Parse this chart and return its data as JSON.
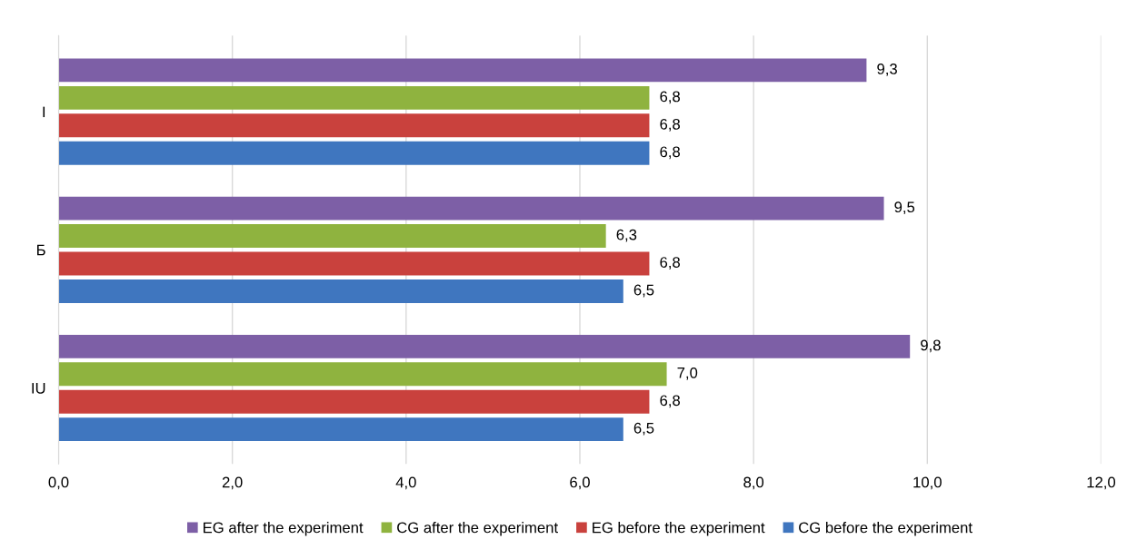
{
  "chart_data": {
    "type": "bar",
    "orientation": "horizontal",
    "categories": [
      "I",
      "Б",
      "IU"
    ],
    "series": [
      {
        "name": "EG after the experiment",
        "color": "#7d5fa6",
        "values": [
          9.3,
          9.5,
          9.8
        ],
        "value_labels": [
          "9,3",
          "9,5",
          "9,8"
        ]
      },
      {
        "name": "CG after the experiment",
        "color": "#8fb33f",
        "values": [
          6.8,
          6.3,
          7.0
        ],
        "value_labels": [
          "6,8",
          "6,3",
          "7,0"
        ]
      },
      {
        "name": "EG before the experiment",
        "color": "#c9413d",
        "values": [
          6.8,
          6.8,
          6.8
        ],
        "value_labels": [
          "6,8",
          "6,8",
          "6,8"
        ]
      },
      {
        "name": "CG before the experiment",
        "color": "#3f76bf",
        "values": [
          6.8,
          6.5,
          6.5
        ],
        "value_labels": [
          "6,8",
          "6,5",
          "6,5"
        ]
      }
    ],
    "xlim": [
      0,
      12
    ],
    "xticks": [
      {
        "value": 0,
        "label": "0,0"
      },
      {
        "value": 2,
        "label": "2,0"
      },
      {
        "value": 4,
        "label": "4,0"
      },
      {
        "value": 6,
        "label": "6,0"
      },
      {
        "value": 8,
        "label": "8,0"
      },
      {
        "value": 10,
        "label": "10,0"
      },
      {
        "value": 12,
        "label": "12,0"
      }
    ],
    "grid": "x",
    "legend": "bottom"
  }
}
